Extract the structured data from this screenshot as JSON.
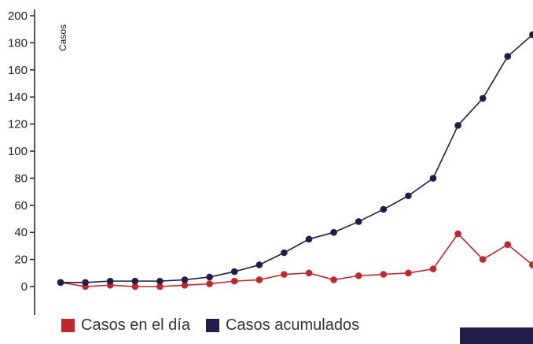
{
  "chart_data": {
    "type": "line",
    "ylabel": "Casos",
    "ylim": [
      0,
      200
    ],
    "y_ticks": [
      0,
      20,
      40,
      60,
      80,
      100,
      120,
      140,
      160,
      180,
      200
    ],
    "x_count": 20,
    "grid": false,
    "legend_position": "bottom-left",
    "series": [
      {
        "name": "Casos en el día",
        "color": "#c0282d",
        "values": [
          3,
          0,
          1,
          0,
          0,
          1,
          2,
          4,
          5,
          9,
          10,
          5,
          8,
          9,
          10,
          13,
          39,
          20,
          31,
          16
        ]
      },
      {
        "name": "Casos acumulados",
        "color": "#1f1d4a",
        "values": [
          3,
          3,
          4,
          4,
          4,
          5,
          7,
          11,
          16,
          25,
          35,
          40,
          48,
          57,
          67,
          80,
          119,
          139,
          170,
          186
        ]
      }
    ]
  }
}
